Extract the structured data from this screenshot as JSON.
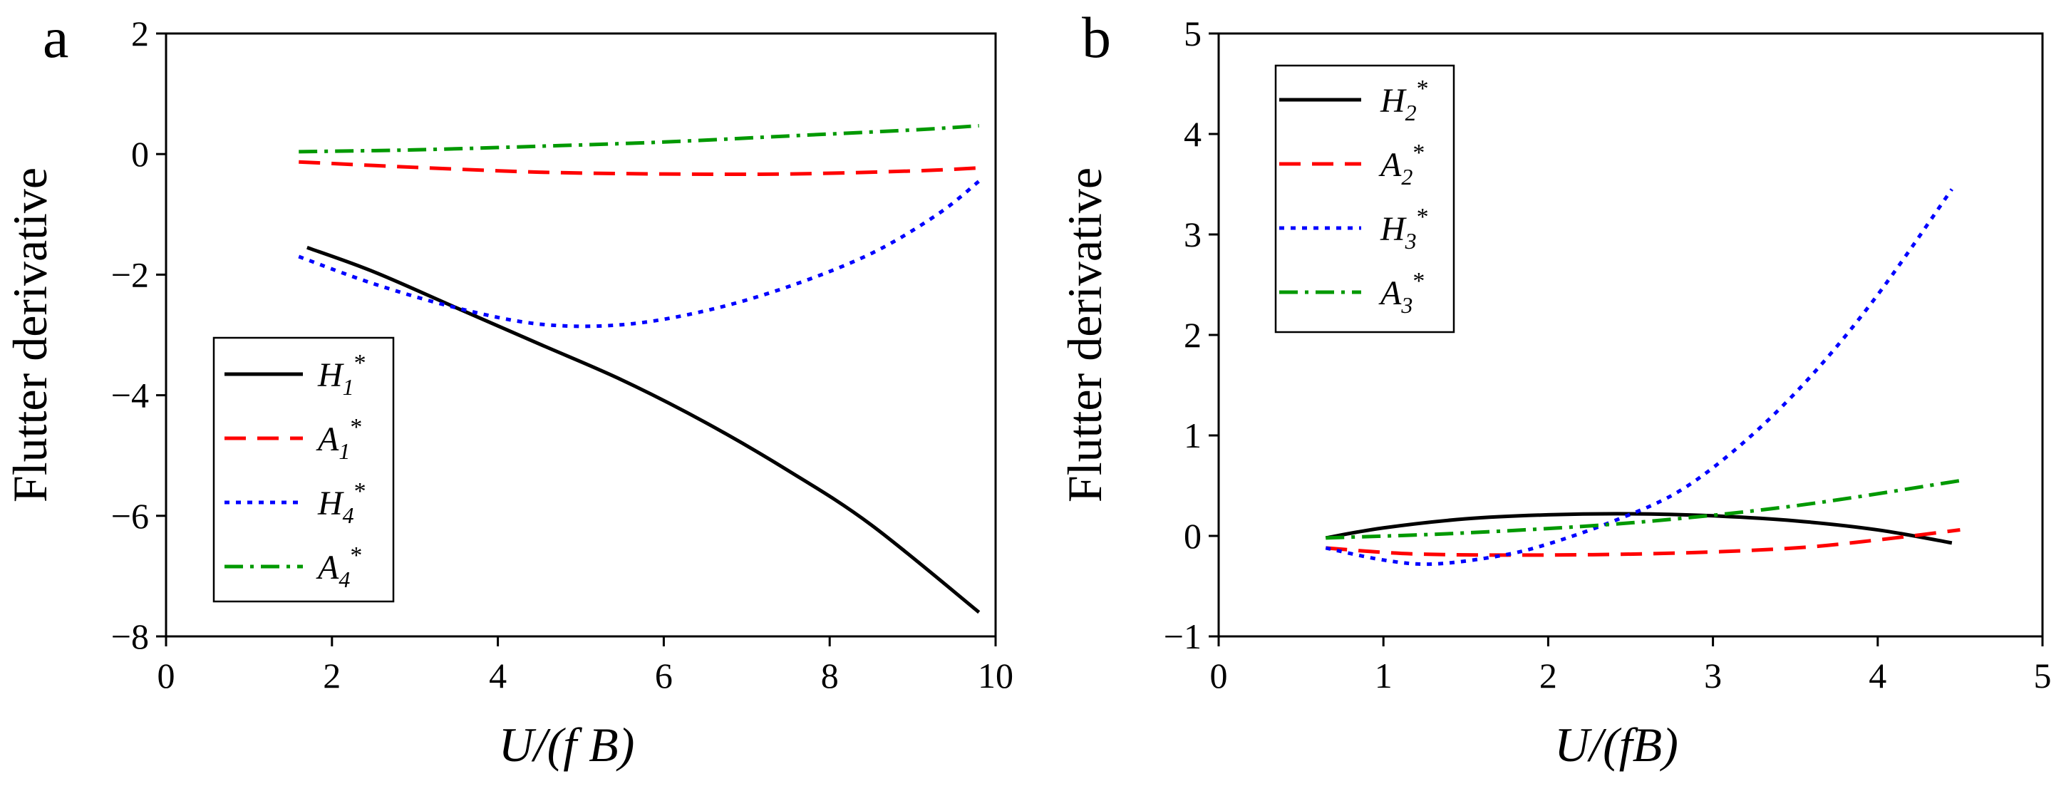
{
  "chart_data": [
    {
      "panel": "a",
      "type": "line",
      "xlabel": "U/(f B)",
      "ylabel": "Flutter derivative",
      "xlim": [
        0,
        10
      ],
      "ylim": [
        -8,
        2
      ],
      "xticks": [
        0,
        2,
        4,
        6,
        8,
        10
      ],
      "yticks": [
        -8,
        -6,
        -4,
        -2,
        0,
        2
      ],
      "xtick_labels": [
        "0",
        "2",
        "4",
        "6",
        "8",
        "10"
      ],
      "ytick_labels": [
        "−8",
        "−6",
        "−4",
        "−2",
        "0",
        "2"
      ],
      "legend_position": "lower-left",
      "series": [
        {
          "name": "H1*",
          "base": "H",
          "sub": "1",
          "sup": "*",
          "color": "#000000",
          "dash": "solid",
          "x": [
            1.7,
            2.5,
            3.5,
            4.5,
            5.5,
            6.5,
            7.5,
            8.5,
            9.8
          ],
          "y": [
            -1.55,
            -1.95,
            -2.55,
            -3.15,
            -3.75,
            -4.45,
            -5.25,
            -6.15,
            -7.6
          ]
        },
        {
          "name": "A1*",
          "base": "A",
          "sub": "1",
          "sup": "*",
          "color": "#ff0000",
          "dash": "long-dash",
          "x": [
            1.6,
            3.0,
            4.5,
            6.0,
            7.5,
            9.0,
            9.8
          ],
          "y": [
            -0.13,
            -0.22,
            -0.3,
            -0.33,
            -0.33,
            -0.28,
            -0.23
          ]
        },
        {
          "name": "H4*",
          "base": "H",
          "sub": "4",
          "sup": "*",
          "color": "#0000ff",
          "dash": "dotted",
          "x": [
            1.6,
            2.5,
            3.5,
            4.5,
            5.5,
            6.5,
            7.5,
            8.5,
            9.3,
            9.8
          ],
          "y": [
            -1.7,
            -2.15,
            -2.55,
            -2.82,
            -2.83,
            -2.6,
            -2.2,
            -1.65,
            -1.0,
            -0.45
          ]
        },
        {
          "name": "A4*",
          "base": "A",
          "sub": "4",
          "sup": "*",
          "color": "#009900",
          "dash": "dash-dot",
          "x": [
            1.6,
            3.0,
            4.5,
            6.0,
            7.5,
            9.0,
            9.8
          ],
          "y": [
            0.04,
            0.07,
            0.13,
            0.2,
            0.3,
            0.4,
            0.47
          ]
        }
      ]
    },
    {
      "panel": "b",
      "type": "line",
      "xlabel": "U/(fB)",
      "ylabel": "Flutter derivative",
      "xlim": [
        0,
        5
      ],
      "ylim": [
        -1,
        5
      ],
      "xticks": [
        0,
        1,
        2,
        3,
        4,
        5
      ],
      "yticks": [
        -1,
        0,
        1,
        2,
        3,
        4,
        5
      ],
      "xtick_labels": [
        "0",
        "1",
        "2",
        "3",
        "4",
        "5"
      ],
      "ytick_labels": [
        "−1",
        "0",
        "1",
        "2",
        "3",
        "4",
        "5"
      ],
      "legend_position": "top-left",
      "series": [
        {
          "name": "H2*",
          "base": "H",
          "sub": "2",
          "sup": "*",
          "color": "#000000",
          "dash": "solid",
          "x": [
            0.65,
            1.0,
            1.5,
            2.0,
            2.5,
            3.0,
            3.5,
            4.0,
            4.45
          ],
          "y": [
            -0.02,
            0.08,
            0.17,
            0.21,
            0.22,
            0.2,
            0.15,
            0.06,
            -0.07
          ]
        },
        {
          "name": "A2*",
          "base": "A",
          "sub": "2",
          "sup": "*",
          "color": "#ff0000",
          "dash": "long-dash",
          "x": [
            0.65,
            1.2,
            2.0,
            2.8,
            3.5,
            4.0,
            4.5
          ],
          "y": [
            -0.12,
            -0.18,
            -0.19,
            -0.17,
            -0.12,
            -0.04,
            0.06
          ]
        },
        {
          "name": "H3*",
          "base": "H",
          "sub": "3",
          "sup": "*",
          "color": "#0000ff",
          "dash": "dotted",
          "x": [
            0.65,
            1.0,
            1.3,
            1.7,
            2.0,
            2.4,
            2.8,
            3.2,
            3.6,
            4.0,
            4.45
          ],
          "y": [
            -0.12,
            -0.24,
            -0.28,
            -0.2,
            -0.08,
            0.15,
            0.45,
            0.95,
            1.6,
            2.4,
            3.45
          ]
        },
        {
          "name": "A3*",
          "base": "A",
          "sub": "3",
          "sup": "*",
          "color": "#009900",
          "dash": "dash-dot",
          "x": [
            0.65,
            1.5,
            2.5,
            3.5,
            4.5
          ],
          "y": [
            -0.02,
            0.03,
            0.13,
            0.3,
            0.55
          ]
        }
      ]
    }
  ]
}
